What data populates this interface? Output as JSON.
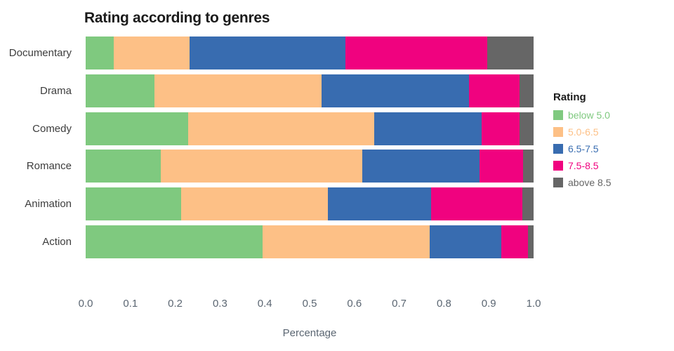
{
  "chart_data": {
    "type": "bar",
    "orientation": "horizontal",
    "stacked": true,
    "title": "Rating according to genres",
    "xlabel": "Percentage",
    "ylabel": "",
    "categories": [
      "Documentary",
      "Drama",
      "Comedy",
      "Romance",
      "Animation",
      "Action"
    ],
    "x_ticks": [
      "0.0",
      "0.1",
      "0.2",
      "0.3",
      "0.4",
      "0.5",
      "0.6",
      "0.7",
      "0.8",
      "0.9",
      "1.0"
    ],
    "xlim": [
      0,
      1
    ],
    "grid": false,
    "legend_title": "Rating",
    "legend_position": "right",
    "series": [
      {
        "name": "below 5.0",
        "color": "#7FC97F",
        "values": [
          0.063,
          0.154,
          0.229,
          0.168,
          0.213,
          0.395
        ]
      },
      {
        "name": "5.0-6.5",
        "color": "#FDC086",
        "values": [
          0.169,
          0.373,
          0.415,
          0.449,
          0.328,
          0.373
        ]
      },
      {
        "name": "6.5-7.5",
        "color": "#386CB0",
        "values": [
          0.348,
          0.329,
          0.24,
          0.262,
          0.23,
          0.16
        ]
      },
      {
        "name": "7.5-8.5",
        "color": "#F0027F",
        "values": [
          0.317,
          0.113,
          0.085,
          0.098,
          0.204,
          0.059
        ]
      },
      {
        "name": "above 8.5",
        "color": "#666666",
        "values": [
          0.103,
          0.031,
          0.031,
          0.023,
          0.025,
          0.013
        ]
      }
    ]
  },
  "colors": {
    "background": "#FFFFFF",
    "title_text": "#1B1B1B",
    "category_label_text": "#3D3D3D",
    "tick_label_text": "#5B6672"
  }
}
